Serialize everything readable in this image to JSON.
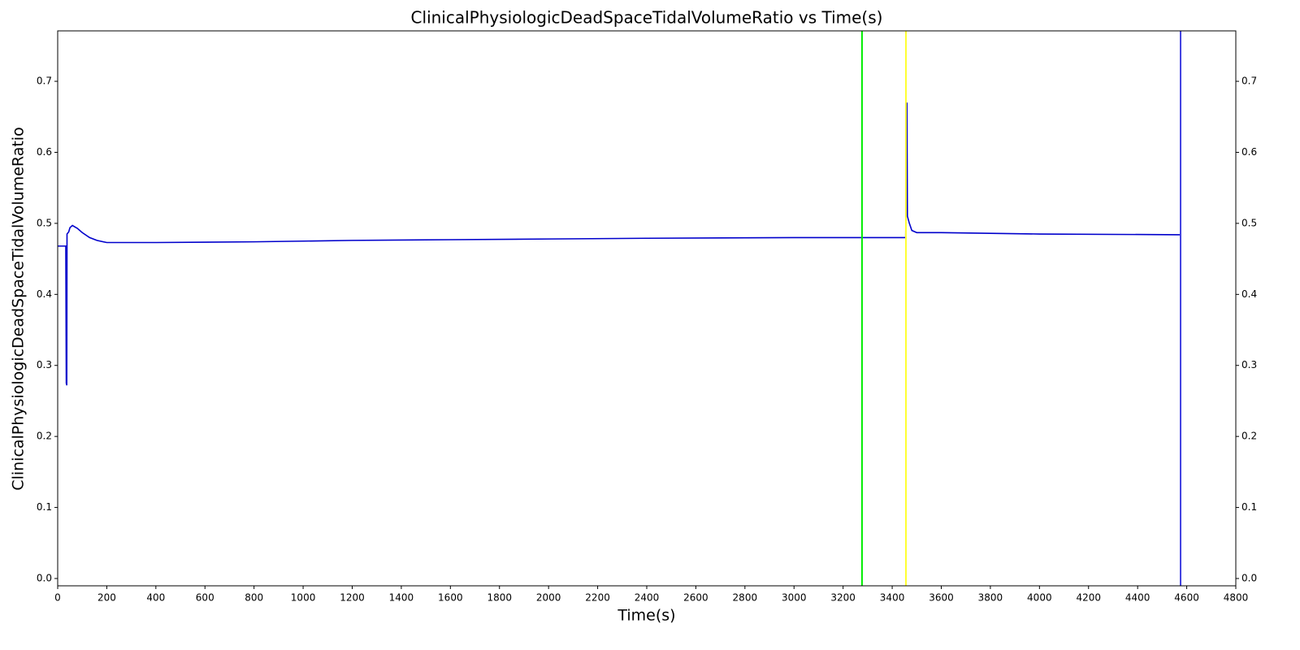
{
  "chart_data": {
    "type": "line",
    "title": "ClinicalPhysiologicDeadSpaceTidalVolumeRatio vs Time(s)",
    "x_label": "Time(s)",
    "y_label": "ClinicalPhysiologicDeadSpaceTidalVolumeRatio",
    "x": [
      0,
      30,
      33,
      35,
      37,
      38,
      45,
      50,
      60,
      80,
      100,
      130,
      160,
      200,
      400,
      800,
      1200,
      1600,
      2000,
      2400,
      3000,
      3280,
      3450,
      3455,
      3460,
      3462,
      3470,
      3480,
      3500,
      3600,
      3800,
      4000,
      4575
    ],
    "series": [
      {
        "name": "ClinicalPhysiologicDeadSpaceTidalVolumeRatio",
        "color": "#0000cc",
        "values": [
          0.468,
          0.468,
          0.468,
          0.275,
          0.272,
          0.485,
          0.488,
          0.494,
          0.497,
          0.493,
          0.487,
          0.48,
          0.476,
          0.473,
          0.473,
          0.474,
          0.476,
          0.477,
          0.478,
          0.479,
          0.48,
          0.48,
          0.48,
          0.48,
          0.67,
          0.51,
          0.5,
          0.49,
          0.487,
          0.487,
          0.486,
          0.485,
          0.484
        ]
      }
    ],
    "vlines": [
      {
        "x": 3277,
        "color": "#00ee00"
      },
      {
        "x": 3456,
        "color": "#ffff33"
      },
      {
        "x": 4575,
        "color": "#4040e0"
      }
    ],
    "xlim": [
      0,
      4800
    ],
    "xticks": [
      0,
      200,
      400,
      600,
      800,
      1000,
      1200,
      1400,
      1600,
      1800,
      2000,
      2200,
      2400,
      2600,
      2800,
      3000,
      3200,
      3400,
      3600,
      3800,
      4000,
      4200,
      4400,
      4600,
      4800
    ],
    "ylim": [
      -0.0103,
      0.771
    ],
    "yticks": [
      {
        "value": 0,
        "label": "0.0"
      },
      0.1,
      0.2,
      0.3,
      0.4,
      0.5,
      0.6,
      0.7
    ],
    "y2lim": [
      -0.0103,
      0.771
    ],
    "y2ticks": [
      {
        "value": 0,
        "label": "0.0"
      },
      0.1,
      0.2,
      0.3,
      0.4,
      0.5,
      0.6,
      0.7
    ]
  }
}
